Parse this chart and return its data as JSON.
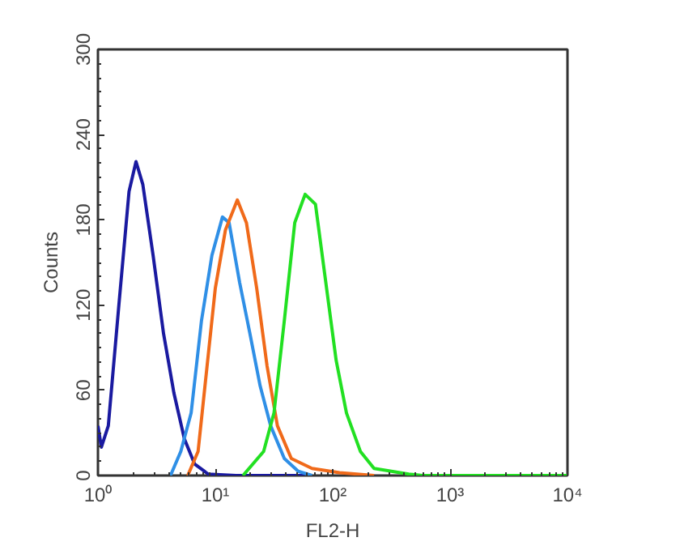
{
  "chart_data": {
    "type": "line",
    "xlabel": "FL2-H",
    "ylabel": "Counts",
    "log": "x",
    "grid": false,
    "xlim": [
      1,
      10000
    ],
    "ylim": [
      0,
      300
    ],
    "xticks": [
      {
        "value": 1,
        "label": "10⁰"
      },
      {
        "value": 10,
        "label": "10¹"
      },
      {
        "value": 100,
        "label": "10²"
      },
      {
        "value": 1000,
        "label": "10³"
      },
      {
        "value": 10000,
        "label": "10⁴"
      }
    ],
    "yticks": [
      0,
      60,
      120,
      180,
      240,
      300
    ],
    "series": [
      {
        "color": "#1a1aa0",
        "x": [
          1.0,
          1.07,
          1.225,
          1.5,
          1.84,
          2.11,
          2.41,
          2.95,
          3.62,
          4.44,
          5.44,
          6.67,
          8.7,
          15,
          58
        ],
        "values": [
          35,
          20,
          35,
          118,
          200,
          221,
          205,
          155,
          100,
          58,
          26,
          8,
          1,
          0,
          0
        ]
      },
      {
        "color": "#2f8fe6",
        "x": [
          4.15,
          5.08,
          6.22,
          7.62,
          9.35,
          11.5,
          13.1,
          16.1,
          19.7,
          24.1,
          29.6,
          38.7,
          50.8,
          66.6
        ],
        "values": [
          0,
          17,
          44,
          109,
          155,
          182,
          178,
          136,
          100,
          63,
          35,
          12,
          3,
          0
        ]
      },
      {
        "color": "#f06a1a",
        "x": [
          5.82,
          7.13,
          8.16,
          10,
          12.2,
          15.4,
          18.4,
          22.5,
          27.6,
          33.8,
          44.4,
          66.6,
          114.5,
          225
        ],
        "values": [
          0,
          17,
          63,
          132,
          173,
          194,
          178,
          132,
          77,
          35,
          12,
          5,
          2,
          0
        ]
      },
      {
        "color": "#22e022",
        "x": [
          17.2,
          25.8,
          31.6,
          38.7,
          47.5,
          58.2,
          71.3,
          87.3,
          107,
          131,
          172,
          225,
          444,
          582,
          10000
        ],
        "values": [
          0,
          17,
          44,
          109,
          178,
          198,
          191,
          136,
          81,
          44,
          17,
          5,
          1,
          0,
          0
        ]
      }
    ]
  }
}
